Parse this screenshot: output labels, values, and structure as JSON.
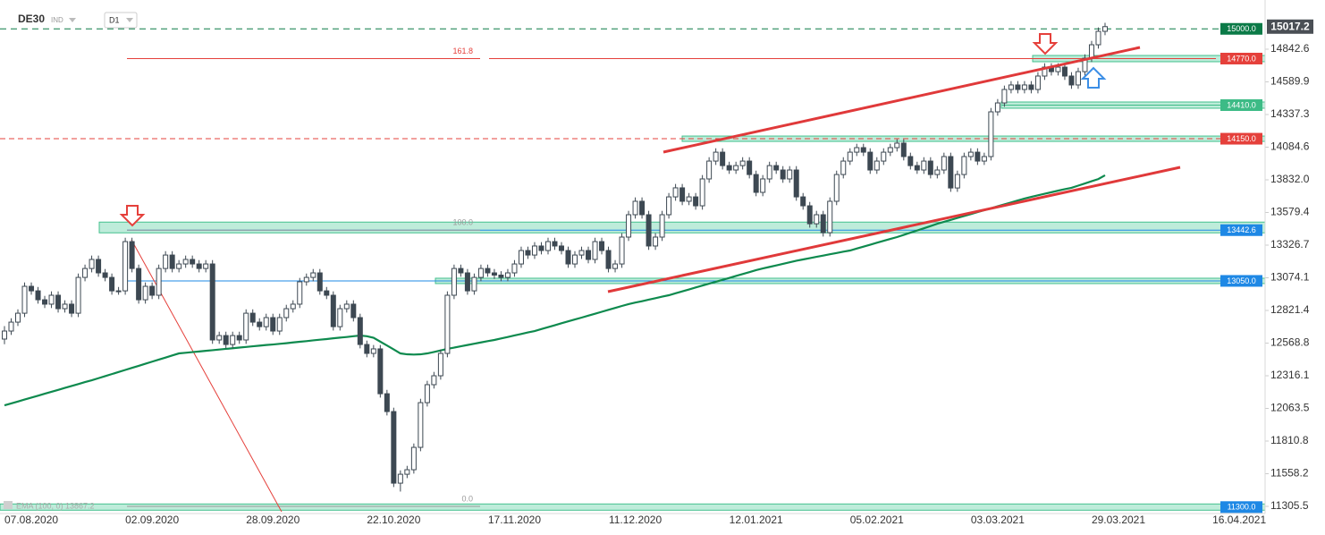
{
  "chart_data": {
    "type": "candlestick",
    "symbol": "DE30",
    "market": "IND",
    "timeframe": "D1",
    "last_price": 15017.2,
    "up_color": "#ffffff",
    "down_color": "#3d4852",
    "wick_color": "#3d4852",
    "ylim": [
      11222.4,
      15223.3
    ],
    "yticks": [
      14842.6,
      14589.9,
      14337.3,
      14084.6,
      {
        "value": 13832,
        "label": "13832.0"
      },
      13579.4,
      13326.7,
      13074.1,
      12821.4,
      12568.8,
      12316.1,
      12063.5,
      11810.8,
      11558.2,
      11305.5
    ],
    "categories": [
      null,
      null,
      null,
      null,
      "07.08.2020",
      null,
      null,
      null,
      null,
      null,
      null,
      null,
      null,
      null,
      null,
      null,
      null,
      null,
      null,
      null,
      null,
      null,
      "02.09.2020",
      null,
      null,
      null,
      null,
      null,
      null,
      null,
      null,
      null,
      null,
      null,
      null,
      null,
      null,
      null,
      null,
      null,
      "28.09.2020",
      null,
      null,
      null,
      null,
      null,
      null,
      null,
      null,
      null,
      null,
      null,
      null,
      null,
      null,
      null,
      null,
      null,
      "22.10.2020",
      null,
      null,
      null,
      null,
      null,
      null,
      null,
      null,
      null,
      null,
      null,
      null,
      null,
      null,
      null,
      null,
      null,
      "17.11.2020",
      null,
      null,
      null,
      null,
      null,
      null,
      null,
      null,
      null,
      null,
      null,
      null,
      null,
      null,
      null,
      null,
      null,
      "11.12.2020",
      null,
      null,
      null,
      null,
      null,
      null,
      null,
      null,
      null,
      null,
      null,
      null,
      null,
      null,
      null,
      null,
      null,
      "12.01.2021",
      null,
      null,
      null,
      null,
      null,
      null,
      null,
      null,
      null,
      null,
      null,
      null,
      null,
      null,
      null,
      null,
      null,
      "05.02.2021",
      null,
      null,
      null,
      null,
      null,
      null,
      null,
      null,
      null,
      null,
      null,
      null,
      null,
      null,
      null,
      null,
      null,
      "03.03.2021",
      null,
      null,
      null,
      null,
      null,
      null,
      null,
      null,
      null,
      null,
      null,
      null,
      null,
      null,
      null,
      null,
      null,
      "29.03.2021",
      null,
      null,
      null,
      null,
      null,
      null,
      null,
      null,
      null,
      null,
      null,
      null,
      null,
      null,
      null,
      null,
      null,
      "16.04.2021"
    ],
    "ohlc": [
      [
        12600,
        12700,
        12560,
        12662
      ],
      [
        12662,
        12761,
        12632,
        12731
      ],
      [
        12731,
        12830,
        12701,
        12800
      ],
      [
        12800,
        13038,
        12770,
        13008
      ],
      [
        13008,
        13038,
        12943,
        12973
      ],
      [
        12973,
        13003,
        12874,
        12904
      ],
      [
        12904,
        12934,
        12840,
        12870
      ],
      [
        12870,
        12969,
        12840,
        12939
      ],
      [
        12939,
        12969,
        12805,
        12835
      ],
      [
        12835,
        12900,
        12805,
        12870
      ],
      [
        12870,
        12900,
        12770,
        12800
      ],
      [
        12800,
        13107,
        12770,
        13077
      ],
      [
        13077,
        13176,
        13047,
        13146
      ],
      [
        13146,
        13246,
        13116,
        13216
      ],
      [
        13216,
        13246,
        13082,
        13112
      ],
      [
        13112,
        13142,
        13047,
        13077
      ],
      [
        13077,
        13107,
        12943,
        12973
      ],
      [
        12973,
        13003,
        12943,
        12973
      ],
      [
        12973,
        13384,
        12943,
        13354
      ],
      [
        13354,
        13384,
        13116,
        13146
      ],
      [
        13146,
        13176,
        12874,
        12904
      ],
      [
        12904,
        13038,
        12874,
        13008
      ],
      [
        13008,
        13038,
        12909,
        12939
      ],
      [
        12939,
        13176,
        12909,
        13146
      ],
      [
        13146,
        13280,
        13116,
        13250
      ],
      [
        13250,
        13280,
        13116,
        13146
      ],
      [
        13146,
        13211,
        13116,
        13181
      ],
      [
        13181,
        13246,
        13151,
        13216
      ],
      [
        13216,
        13246,
        13151,
        13181
      ],
      [
        13181,
        13211,
        13116,
        13146
      ],
      [
        13146,
        13211,
        13116,
        13181
      ],
      [
        13181,
        13211,
        12563,
        12593
      ],
      [
        12593,
        12657,
        12563,
        12627
      ],
      [
        12627,
        12657,
        12528,
        12558
      ],
      [
        12558,
        12657,
        12528,
        12627
      ],
      [
        12627,
        12657,
        12563,
        12593
      ],
      [
        12593,
        12830,
        12563,
        12800
      ],
      [
        12800,
        12830,
        12701,
        12731
      ],
      [
        12731,
        12761,
        12666,
        12696
      ],
      [
        12696,
        12796,
        12666,
        12766
      ],
      [
        12766,
        12796,
        12632,
        12662
      ],
      [
        12662,
        12796,
        12632,
        12766
      ],
      [
        12766,
        12865,
        12736,
        12835
      ],
      [
        12835,
        12900,
        12805,
        12870
      ],
      [
        12870,
        13073,
        12840,
        13043
      ],
      [
        13043,
        13107,
        13013,
        13077
      ],
      [
        13077,
        13142,
        13047,
        13112
      ],
      [
        13112,
        13142,
        12943,
        12973
      ],
      [
        12973,
        13003,
        12909,
        12939
      ],
      [
        12939,
        12969,
        12666,
        12696
      ],
      [
        12696,
        12865,
        12666,
        12835
      ],
      [
        12835,
        12900,
        12805,
        12870
      ],
      [
        12870,
        12900,
        12736,
        12766
      ],
      [
        12766,
        12796,
        12528,
        12558
      ],
      [
        12558,
        12588,
        12459,
        12489
      ],
      [
        12489,
        12554,
        12459,
        12524
      ],
      [
        12524,
        12554,
        12147,
        12177
      ],
      [
        12177,
        12207,
        12009,
        12039
      ],
      [
        12039,
        12069,
        11455,
        11485
      ],
      [
        11485,
        11584,
        11420,
        11554
      ],
      [
        11554,
        11619,
        11524,
        11589
      ],
      [
        11589,
        11792,
        11559,
        11762
      ],
      [
        11762,
        12138,
        11732,
        12108
      ],
      [
        12108,
        12277,
        12078,
        12247
      ],
      [
        12247,
        12346,
        12217,
        12316
      ],
      [
        12316,
        12519,
        12286,
        12489
      ],
      [
        12489,
        12969,
        12459,
        12939
      ],
      [
        12939,
        13176,
        12909,
        13146
      ],
      [
        13146,
        13176,
        13082,
        13112
      ],
      [
        13112,
        13142,
        12943,
        12973
      ],
      [
        12973,
        13107,
        12943,
        13077
      ],
      [
        13077,
        13176,
        13047,
        13146
      ],
      [
        13146,
        13176,
        13082,
        13112
      ],
      [
        13112,
        13142,
        13065,
        13095
      ],
      [
        13095,
        13125,
        13047,
        13077
      ],
      [
        13077,
        13142,
        13047,
        13112
      ],
      [
        13112,
        13211,
        13082,
        13181
      ],
      [
        13181,
        13315,
        13151,
        13285
      ],
      [
        13285,
        13315,
        13220,
        13250
      ],
      [
        13250,
        13350,
        13220,
        13320
      ],
      [
        13320,
        13350,
        13255,
        13285
      ],
      [
        13285,
        13384,
        13255,
        13354
      ],
      [
        13354,
        13384,
        13290,
        13320
      ],
      [
        13320,
        13350,
        13255,
        13285
      ],
      [
        13285,
        13315,
        13151,
        13181
      ],
      [
        13181,
        13280,
        13151,
        13250
      ],
      [
        13250,
        13315,
        13220,
        13285
      ],
      [
        13285,
        13315,
        13186,
        13216
      ],
      [
        13216,
        13384,
        13186,
        13354
      ],
      [
        13354,
        13384,
        13255,
        13285
      ],
      [
        13285,
        13315,
        13116,
        13146
      ],
      [
        13146,
        13211,
        13116,
        13181
      ],
      [
        13181,
        13419,
        13151,
        13389
      ],
      [
        13389,
        13592,
        13359,
        13562
      ],
      [
        13562,
        13696,
        13532,
        13666
      ],
      [
        13666,
        13696,
        13532,
        13562
      ],
      [
        13562,
        13592,
        13290,
        13320
      ],
      [
        13320,
        13419,
        13290,
        13389
      ],
      [
        13389,
        13592,
        13359,
        13562
      ],
      [
        13562,
        13730,
        13532,
        13700
      ],
      [
        13700,
        13800,
        13670,
        13770
      ],
      [
        13770,
        13800,
        13636,
        13666
      ],
      [
        13666,
        13730,
        13636,
        13700
      ],
      [
        13700,
        13730,
        13601,
        13631
      ],
      [
        13631,
        13869,
        13601,
        13839
      ],
      [
        13839,
        14007,
        13809,
        13977
      ],
      [
        13977,
        14076,
        13947,
        14046
      ],
      [
        14046,
        14076,
        13912,
        13942
      ],
      [
        13942,
        13972,
        13878,
        13908
      ],
      [
        13908,
        13972,
        13878,
        13942
      ],
      [
        13942,
        14007,
        13912,
        13977
      ],
      [
        13977,
        14007,
        13843,
        13873
      ],
      [
        13873,
        13903,
        13705,
        13735
      ],
      [
        13735,
        13869,
        13705,
        13839
      ],
      [
        13839,
        13972,
        13809,
        13942
      ],
      [
        13942,
        13972,
        13878,
        13908
      ],
      [
        13908,
        13938,
        13809,
        13839
      ],
      [
        13839,
        13938,
        13809,
        13908
      ],
      [
        13908,
        13938,
        13670,
        13700
      ],
      [
        13700,
        13730,
        13601,
        13631
      ],
      [
        13631,
        13661,
        13462,
        13492
      ],
      [
        13492,
        13592,
        13462,
        13562
      ],
      [
        13562,
        13592,
        13393,
        13423
      ],
      [
        13423,
        13696,
        13393,
        13666
      ],
      [
        13666,
        13903,
        13636,
        13873
      ],
      [
        13873,
        14007,
        13843,
        13977
      ],
      [
        13977,
        14076,
        13947,
        14046
      ],
      [
        14046,
        14111,
        14016,
        14081
      ],
      [
        14081,
        14111,
        14016,
        14046
      ],
      [
        14046,
        14076,
        13878,
        13908
      ],
      [
        13908,
        14007,
        13878,
        13977
      ],
      [
        13977,
        14076,
        13947,
        14046
      ],
      [
        14046,
        14111,
        14016,
        14081
      ],
      [
        14081,
        14146,
        14051,
        14116
      ],
      [
        14116,
        14146,
        13982,
        14012
      ],
      [
        14012,
        14042,
        13912,
        13942
      ],
      [
        13942,
        13972,
        13878,
        13908
      ],
      [
        13908,
        14007,
        13878,
        13977
      ],
      [
        13977,
        14007,
        13843,
        13873
      ],
      [
        13873,
        13938,
        13843,
        13908
      ],
      [
        13908,
        14042,
        13878,
        14012
      ],
      [
        14012,
        14042,
        13739,
        13769
      ],
      [
        13769,
        13903,
        13739,
        13873
      ],
      [
        13873,
        14042,
        13843,
        14012
      ],
      [
        14012,
        14076,
        13982,
        14046
      ],
      [
        14046,
        14076,
        13947,
        13977
      ],
      [
        13977,
        14042,
        13947,
        14012
      ],
      [
        14012,
        14388,
        13982,
        14358
      ],
      [
        14358,
        14457,
        14328,
        14427
      ],
      [
        14427,
        14561,
        14397,
        14531
      ],
      [
        14531,
        14596,
        14501,
        14566
      ],
      [
        14566,
        14596,
        14501,
        14531
      ],
      [
        14531,
        14596,
        14501,
        14566
      ],
      [
        14566,
        14596,
        14501,
        14531
      ],
      [
        14531,
        14665,
        14501,
        14635
      ],
      [
        14635,
        14734,
        14605,
        14704
      ],
      [
        14704,
        14734,
        14639,
        14669
      ],
      [
        14669,
        14734,
        14639,
        14704
      ],
      [
        14704,
        14734,
        14605,
        14635
      ],
      [
        14635,
        14665,
        14536,
        14566
      ],
      [
        14566,
        14699,
        14536,
        14669
      ],
      [
        14669,
        14803,
        14639,
        14773
      ],
      [
        14773,
        14907,
        14743,
        14877
      ],
      [
        14877,
        15011,
        14847,
        14981
      ],
      [
        14981,
        15047,
        14951,
        15017.2
      ],
      null,
      null,
      null,
      null,
      null,
      null,
      null,
      null,
      null,
      null,
      null,
      null,
      null,
      null,
      null,
      null,
      null,
      null,
      null,
      null
    ],
    "ema": {
      "label": "EMA (100, 0) 13867.2",
      "color": "#0e8a4e",
      "values": [
        12087,
        12102,
        12117,
        12132,
        12147,
        12162,
        12177,
        12192,
        12207,
        12222,
        12237,
        12252,
        12267,
        12281,
        12297,
        12313,
        12329,
        12345,
        12361,
        12377,
        12393,
        12409,
        12425,
        12441,
        12457,
        12473,
        12489,
        12494,
        12499,
        12504,
        12509,
        12514,
        12519,
        12524,
        12529,
        12534,
        12539,
        12544,
        12549,
        12554,
        12558,
        12563,
        12568,
        12574,
        12579,
        12584,
        12590,
        12595,
        12600,
        12606,
        12611,
        12616,
        12622,
        12627,
        12622,
        12610,
        12580,
        12550,
        12520,
        12489,
        12482,
        12480,
        12482,
        12489,
        12500,
        12512,
        12524,
        12534,
        12544,
        12554,
        12564,
        12574,
        12584,
        12593,
        12605,
        12616,
        12628,
        12639,
        12651,
        12662,
        12677,
        12692,
        12707,
        12722,
        12737,
        12752,
        12766,
        12781,
        12796,
        12811,
        12826,
        12841,
        12856,
        12870,
        12882,
        12893,
        12905,
        12916,
        12928,
        12939,
        12954,
        12969,
        12984,
        12999,
        13014,
        13029,
        13043,
        13058,
        13073,
        13088,
        13103,
        13118,
        13133,
        13146,
        13158,
        13170,
        13182,
        13194,
        13206,
        13216,
        13226,
        13236,
        13246,
        13256,
        13266,
        13276,
        13285,
        13300,
        13315,
        13330,
        13345,
        13360,
        13375,
        13389,
        13406,
        13423,
        13440,
        13457,
        13474,
        13492,
        13507,
        13522,
        13537,
        13552,
        13567,
        13582,
        13597,
        13612,
        13627,
        13642,
        13657,
        13672,
        13687,
        13700,
        13712,
        13724,
        13736,
        13748,
        13760,
        13770,
        13787,
        13804,
        13821,
        13838,
        13867.2,
        null,
        null,
        null,
        null,
        null,
        null,
        null,
        null,
        null,
        null,
        null,
        null,
        null,
        null,
        null,
        null,
        null,
        null,
        null,
        null
      ]
    },
    "levels": [
      {
        "value": 15000,
        "label": "15000.0",
        "color": "#0b7a47"
      },
      {
        "value": 14770,
        "label": "14770.0",
        "color": "#e5403b"
      },
      {
        "value": 14410,
        "label": "14410.0",
        "color": "#3dbb86"
      },
      {
        "value": 14150,
        "label": "14150.0",
        "color": "#e5403b"
      },
      {
        "value": 13442.6,
        "color": "#1e88e5"
      },
      {
        "value": 13050,
        "label": "13050.0",
        "color": "#1e88e5"
      },
      {
        "value": 11300,
        "label": "11300.0",
        "color": "#1e88e5"
      }
    ],
    "fib_levels": [
      {
        "value": 14770,
        "label": "161.8",
        "color": "#e5403b"
      },
      {
        "value": 13442.6,
        "label": "100.0",
        "color": "#999999"
      },
      {
        "value": 11305.5,
        "label": "0.0",
        "color": "#999999"
      }
    ]
  }
}
